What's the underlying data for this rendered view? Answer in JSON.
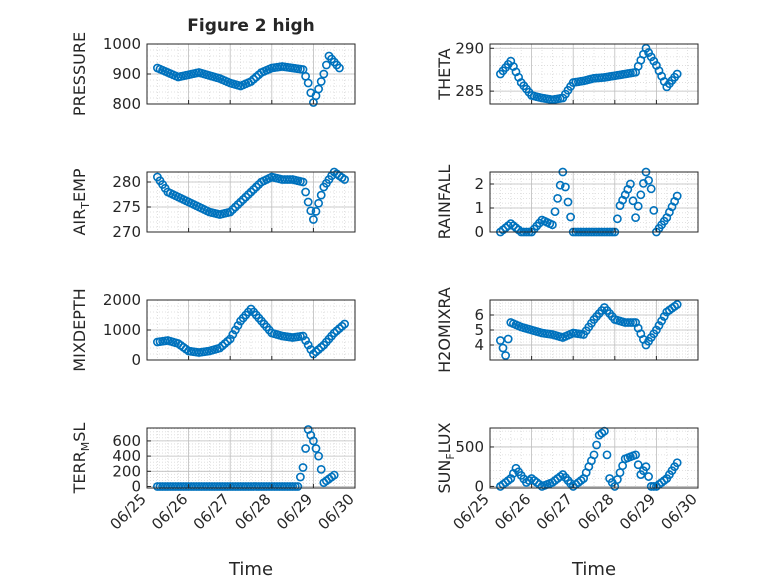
{
  "figure": {
    "title": "Figure 2 high",
    "xlabel": "Time",
    "x_tick_labels": [
      "06/25",
      "06/26",
      "06/27",
      "06/28",
      "06/29",
      "06/30"
    ],
    "marker_color": "#0072bd"
  },
  "chart_data": [
    {
      "type": "scatter",
      "name": "PRESSURE",
      "ylabel": "PRESSURE",
      "ylim": [
        800,
        1000
      ],
      "yticks": [
        "800",
        "900",
        "1000"
      ],
      "grid": true,
      "x": [
        "06/25 06:00",
        "06/25 18:00",
        "06/26 06:00",
        "06/26 18:00",
        "06/27 00:00",
        "06/27 06:00",
        "06/27 12:00",
        "06/27 18:00",
        "06/28 00:00",
        "06/28 06:00",
        "06/28 12:00",
        "06/28 18:00",
        "06/28 21:00",
        "06/29 00:00",
        "06/29 03:00",
        "06/29 06:00",
        "06/29 09:00",
        "06/29 15:00"
      ],
      "y": [
        920,
        890,
        905,
        885,
        870,
        860,
        875,
        905,
        920,
        925,
        920,
        915,
        870,
        805,
        850,
        900,
        960,
        920
      ]
    },
    {
      "type": "scatter",
      "name": "THETA",
      "ylabel": "THETA",
      "ylim": [
        283.5,
        290.5
      ],
      "yticks": [
        "285",
        "290"
      ],
      "grid": true,
      "x": [
        "06/25 06:00",
        "06/25 12:00",
        "06/25 18:00",
        "06/26 00:00",
        "06/26 06:00",
        "06/26 12:00",
        "06/26 18:00",
        "06/27 00:00",
        "06/27 06:00",
        "06/27 12:00",
        "06/27 18:00",
        "06/28 00:00",
        "06/28 06:00",
        "06/28 12:00",
        "06/28 18:00",
        "06/29 00:00",
        "06/29 06:00",
        "06/29 12:00"
      ],
      "y": [
        287,
        288.5,
        286,
        284.5,
        284.2,
        284,
        284.2,
        286,
        286.2,
        286.5,
        286.6,
        286.8,
        287,
        287.2,
        290,
        288,
        285.5,
        287
      ]
    },
    {
      "type": "scatter",
      "name": "AIR_TEMP",
      "ylabel": "AIR",
      "ylabel_sub": "T",
      "ylabel_suffix": "EMP",
      "ylim": [
        270,
        282
      ],
      "yticks": [
        "270",
        "275",
        "280"
      ],
      "grid": true,
      "x": [
        "06/25 06:00",
        "06/25 12:00",
        "06/25 18:00",
        "06/26 00:00",
        "06/26 06:00",
        "06/26 12:00",
        "06/26 18:00",
        "06/27 00:00",
        "06/27 06:00",
        "06/27 12:00",
        "06/27 18:00",
        "06/28 00:00",
        "06/28 06:00",
        "06/28 12:00",
        "06/28 18:00",
        "06/28 21:00",
        "06/29 00:00",
        "06/29 06:00",
        "06/29 12:00",
        "06/29 18:00"
      ],
      "y": [
        281,
        278,
        277,
        276,
        275,
        274,
        273.5,
        274,
        276,
        278,
        280,
        281,
        280.5,
        280.5,
        280,
        276,
        272.5,
        279,
        282,
        280.5
      ]
    },
    {
      "type": "scatter",
      "name": "RAINFALL",
      "ylabel": "RAINFALL",
      "ylim": [
        0,
        2.5
      ],
      "yticks": [
        "0",
        "1",
        "2"
      ],
      "grid": true,
      "x": [
        "06/25 06:00",
        "06/25 12:00",
        "06/25 18:00",
        "06/26 00:00",
        "06/26 06:00",
        "06/26 12:00",
        "06/26 18:00",
        "06/27 00:00",
        "06/27 06:00",
        "06/27 12:00",
        "06/27 18:00",
        "06/28 00:00",
        "06/28 03:00",
        "06/28 09:00",
        "06/28 12:00",
        "06/28 18:00",
        "06/28 21:00",
        "06/29 00:00",
        "06/29 06:00",
        "06/29 12:00"
      ],
      "y": [
        0,
        0.35,
        0,
        0,
        0.5,
        0.3,
        2.5,
        0,
        0,
        0,
        0,
        0,
        1.1,
        2.0,
        0.6,
        2.5,
        1.8,
        0,
        0.6,
        1.5
      ]
    },
    {
      "type": "scatter",
      "name": "MIXDEPTH",
      "ylabel": "MIXDEPTH",
      "ylim": [
        0,
        2000
      ],
      "yticks": [
        "0",
        "1000",
        "2000"
      ],
      "grid": true,
      "x": [
        "06/25 06:00",
        "06/25 12:00",
        "06/25 18:00",
        "06/26 00:00",
        "06/26 06:00",
        "06/26 12:00",
        "06/26 18:00",
        "06/27 00:00",
        "06/27 06:00",
        "06/27 12:00",
        "06/27 18:00",
        "06/28 00:00",
        "06/28 06:00",
        "06/28 12:00",
        "06/28 18:00",
        "06/29 00:00",
        "06/29 06:00",
        "06/29 12:00",
        "06/29 18:00"
      ],
      "y": [
        600,
        650,
        550,
        300,
        250,
        300,
        400,
        700,
        1300,
        1700,
        1300,
        900,
        800,
        750,
        800,
        200,
        500,
        900,
        1200
      ]
    },
    {
      "type": "scatter",
      "name": "H2OMIXRA",
      "ylabel": "H2OMIXRA",
      "ylim": [
        3,
        7
      ],
      "yticks": [
        "4",
        "5",
        "6"
      ],
      "grid": true,
      "x": [
        "06/25 06:00",
        "06/25 09:00",
        "06/25 12:00",
        "06/25 18:00",
        "06/26 00:00",
        "06/26 06:00",
        "06/26 12:00",
        "06/26 18:00",
        "06/27 00:00",
        "06/27 06:00",
        "06/27 12:00",
        "06/27 18:00",
        "06/28 00:00",
        "06/28 06:00",
        "06/28 12:00",
        "06/28 18:00",
        "06/29 00:00",
        "06/29 06:00",
        "06/29 12:00"
      ],
      "y": [
        4.3,
        3.3,
        5.5,
        5.2,
        5.0,
        4.8,
        4.7,
        4.5,
        4.8,
        4.7,
        5.7,
        6.5,
        5.7,
        5.5,
        5.5,
        4.0,
        5.0,
        6.2,
        6.7
      ]
    },
    {
      "type": "scatter",
      "name": "TERR_MSL",
      "ylabel": "TERR",
      "ylabel_sub": "M",
      "ylabel_suffix": "SL",
      "ylim": [
        -20,
        770
      ],
      "yticks": [
        "0",
        "200",
        "400",
        "600"
      ],
      "grid": true,
      "x": [
        "06/25 06:00",
        "06/25 12:00",
        "06/25 18:00",
        "06/26 00:00",
        "06/26 06:00",
        "06/26 12:00",
        "06/26 18:00",
        "06/27 00:00",
        "06/27 06:00",
        "06/27 12:00",
        "06/27 18:00",
        "06/28 00:00",
        "06/28 06:00",
        "06/28 12:00",
        "06/28 15:00",
        "06/28 18:00",
        "06/28 21:00",
        "06/29 00:00",
        "06/29 03:00",
        "06/29 06:00",
        "06/29 12:00"
      ],
      "y": [
        0,
        0,
        0,
        0,
        0,
        0,
        0,
        0,
        0,
        0,
        0,
        0,
        0,
        0,
        0,
        250,
        750,
        600,
        400,
        50,
        150
      ]
    },
    {
      "type": "scatter",
      "name": "SUN_FLUX",
      "ylabel": "SUN",
      "ylabel_sub": "F",
      "ylabel_suffix": "LUX",
      "ylim": [
        -20,
        740
      ],
      "yticks": [
        "0",
        "500"
      ],
      "grid": true,
      "x": [
        "06/25 06:00",
        "06/25 12:00",
        "06/25 15:00",
        "06/25 21:00",
        "06/26 00:00",
        "06/26 06:00",
        "06/26 12:00",
        "06/26 18:00",
        "06/27 00:00",
        "06/27 06:00",
        "06/27 12:00",
        "06/27 15:00",
        "06/27 18:00",
        "06/27 21:00",
        "06/28 00:00",
        "06/28 06:00",
        "06/28 12:00",
        "06/28 15:00",
        "06/28 18:00",
        "06/28 21:00",
        "06/29 00:00",
        "06/29 06:00",
        "06/29 12:00"
      ],
      "y": [
        0,
        100,
        230,
        50,
        100,
        0,
        50,
        150,
        0,
        100,
        400,
        650,
        700,
        100,
        0,
        350,
        400,
        150,
        250,
        0,
        0,
        100,
        300
      ]
    }
  ]
}
